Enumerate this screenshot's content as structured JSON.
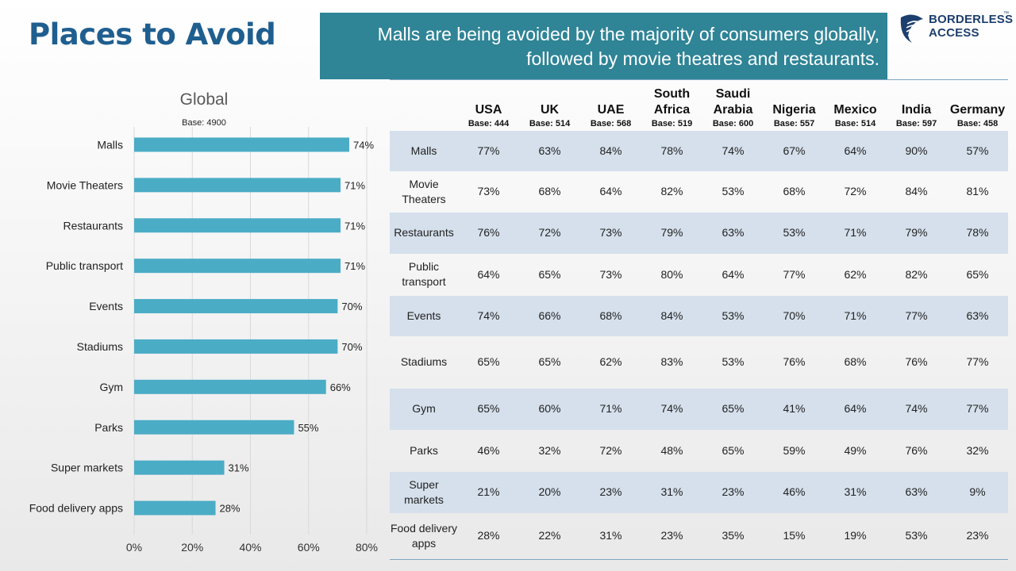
{
  "title": "Places to Avoid",
  "headline": {
    "line1": "Malls are being avoided by the majority of consumers globally,",
    "line2": "followed by movie theatres and restaurants."
  },
  "logo": {
    "line1": "BORDERLESS",
    "line2": "ACCESS",
    "tm": "™"
  },
  "chart_data": {
    "type": "bar",
    "orientation": "horizontal",
    "title": "Global",
    "subtitle": "Base: 4900",
    "categories": [
      "Malls",
      "Movie Theaters",
      "Restaurants",
      "Public transport",
      "Events",
      "Stadiums",
      "Gym",
      "Parks",
      "Super markets",
      "Food delivery apps"
    ],
    "values": [
      74,
      71,
      71,
      71,
      70,
      70,
      66,
      55,
      31,
      28
    ],
    "value_suffix": "%",
    "xlim": [
      0,
      80
    ],
    "x_ticks": [
      "0%",
      "20%",
      "40%",
      "60%",
      "80%"
    ],
    "grid": true,
    "bar_color": "#4bacc6"
  },
  "table": {
    "countries": [
      {
        "name": "USA",
        "base": "Base: 444"
      },
      {
        "name": "UK",
        "base": "Base: 514"
      },
      {
        "name": "UAE",
        "base": "Base: 568"
      },
      {
        "name": "South Africa",
        "base": "Base: 519"
      },
      {
        "name": "Saudi Arabia",
        "base": "Base: 600"
      },
      {
        "name": "Nigeria",
        "base": "Base: 557"
      },
      {
        "name": "Mexico",
        "base": "Base: 514"
      },
      {
        "name": "India",
        "base": "Base: 597"
      },
      {
        "name": "Germany",
        "base": "Base: 458"
      }
    ],
    "rows": [
      {
        "label": "Malls",
        "values": [
          "77%",
          "63%",
          "84%",
          "78%",
          "74%",
          "67%",
          "64%",
          "90%",
          "57%"
        ]
      },
      {
        "label": "Movie Theaters",
        "values": [
          "73%",
          "68%",
          "64%",
          "82%",
          "53%",
          "68%",
          "72%",
          "84%",
          "81%"
        ]
      },
      {
        "label": "Restaurants",
        "values": [
          "76%",
          "72%",
          "73%",
          "79%",
          "63%",
          "53%",
          "71%",
          "79%",
          "78%"
        ]
      },
      {
        "label": "Public transport",
        "values": [
          "64%",
          "65%",
          "73%",
          "80%",
          "64%",
          "77%",
          "62%",
          "82%",
          "65%"
        ]
      },
      {
        "label": "Events",
        "values": [
          "74%",
          "66%",
          "68%",
          "84%",
          "53%",
          "70%",
          "71%",
          "77%",
          "63%"
        ]
      },
      {
        "label": "Stadiums",
        "values": [
          "65%",
          "65%",
          "62%",
          "83%",
          "53%",
          "76%",
          "68%",
          "76%",
          "77%"
        ]
      },
      {
        "label": "Gym",
        "values": [
          "65%",
          "60%",
          "71%",
          "74%",
          "65%",
          "41%",
          "64%",
          "74%",
          "77%"
        ]
      },
      {
        "label": "Parks",
        "values": [
          "46%",
          "32%",
          "72%",
          "48%",
          "65%",
          "59%",
          "49%",
          "76%",
          "32%"
        ]
      },
      {
        "label": "Super markets",
        "values": [
          "21%",
          "20%",
          "23%",
          "31%",
          "23%",
          "46%",
          "31%",
          "63%",
          "9%"
        ]
      },
      {
        "label": "Food delivery apps",
        "values": [
          "28%",
          "22%",
          "31%",
          "23%",
          "35%",
          "15%",
          "19%",
          "53%",
          "23%"
        ]
      }
    ]
  },
  "colors": {
    "title": "#1f5f8f",
    "headline_bg": "#2f8496",
    "bar": "#4bacc6",
    "row_shade": "#d5e0ec"
  }
}
